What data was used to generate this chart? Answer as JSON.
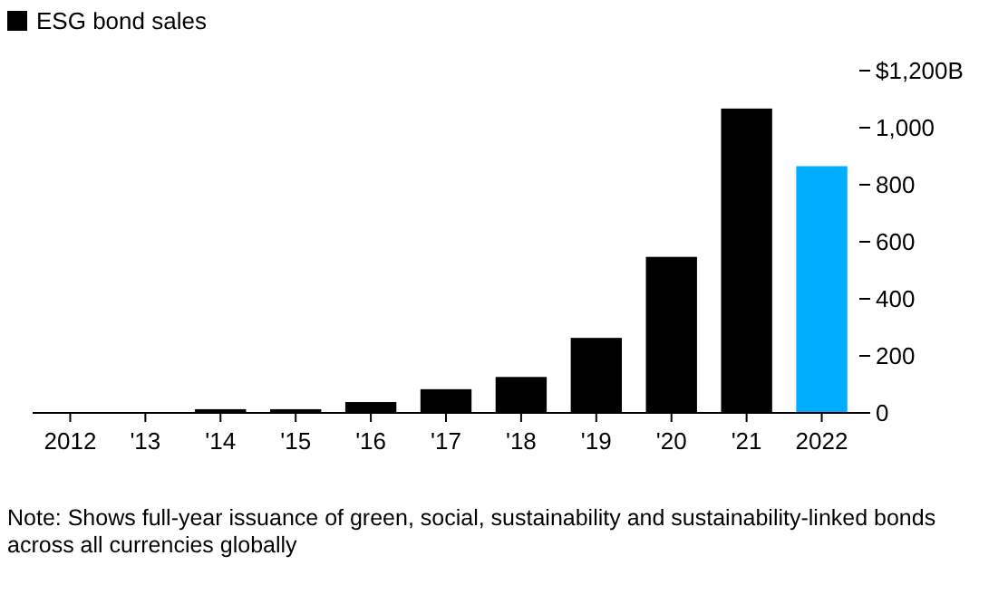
{
  "chart_data": {
    "type": "bar",
    "categories": [
      "2012",
      "'13",
      "'14",
      "'15",
      "'16",
      "'17",
      "'18",
      "'19",
      "'20",
      "'21",
      "2022"
    ],
    "series": [
      {
        "name": "ESG bond sales",
        "color": "#000000",
        "colors": [
          "#000000",
          "#000000",
          "#000000",
          "#000000",
          "#000000",
          "#000000",
          "#000000",
          "#000000",
          "#000000",
          "#000000",
          "#00adff"
        ],
        "values": [
          3,
          3,
          13,
          13,
          38,
          83,
          126,
          263,
          547,
          1067,
          865
        ]
      }
    ],
    "ylim": [
      0,
      1200
    ],
    "yticks": [
      0,
      200,
      400,
      600,
      800,
      {
        "value": 1000,
        "label": "1,000"
      },
      {
        "value": 1200,
        "label": "$1,200B"
      }
    ],
    "grid": false,
    "legend": "top left",
    "annotations": [
      "Note: Shows full-year issuance of green, social, sustainability and sustainability-linked bonds across all currencies globally"
    ]
  }
}
